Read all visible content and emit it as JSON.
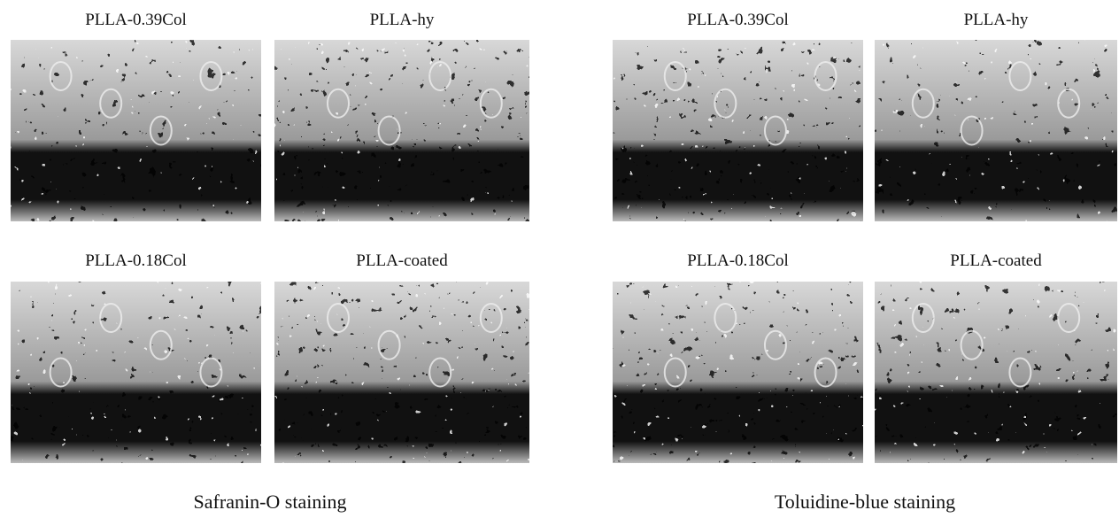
{
  "panels": [
    {
      "caption": "Safranin-O staining",
      "images": [
        {
          "label": "PLLA-0.39Col"
        },
        {
          "label": "PLLA-hy"
        },
        {
          "label": "PLLA-0.18Col"
        },
        {
          "label": "PLLA-coated"
        }
      ]
    },
    {
      "caption": "Toluidine-blue staining",
      "images": [
        {
          "label": "PLLA-0.39Col"
        },
        {
          "label": "PLLA-hy"
        },
        {
          "label": "PLLA-0.18Col"
        },
        {
          "label": "PLLA-coated"
        }
      ]
    }
  ]
}
